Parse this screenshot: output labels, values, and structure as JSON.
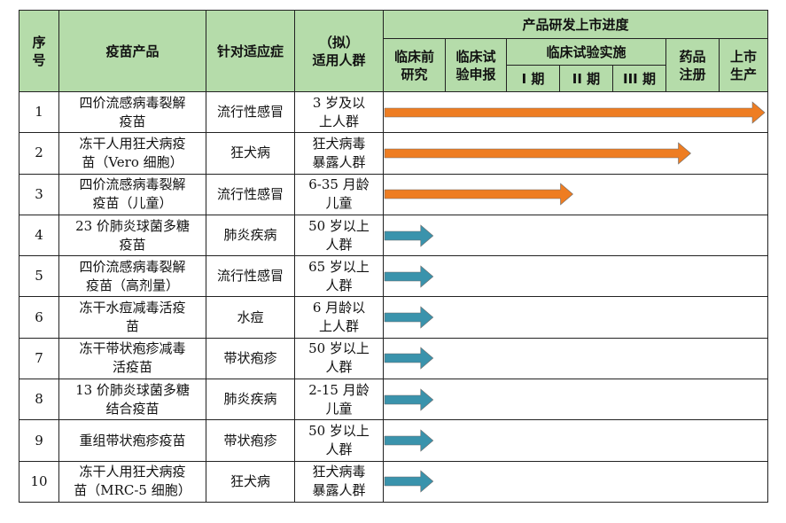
{
  "colors": {
    "header_bg": "#b5dcaa",
    "arrow_orange": "#ee7d22",
    "arrow_teal": "#3a93ac"
  },
  "headers": {
    "no": "序\n号",
    "product": "疫苗产品",
    "indication": "针对适应症",
    "population": "（拟）\n适用人群",
    "progress": "产品研发上市进度",
    "preclinical": "临床前\n研究",
    "ind": "临床试\n验申报",
    "trial": "临床试验实施",
    "phase1": "I 期",
    "phase2": "II 期",
    "phase3": "III 期",
    "nda": "药品\n注册",
    "launch": "上市\n生产"
  },
  "stage_count": 7,
  "rows": [
    {
      "no": "1",
      "product": "四价流感病毒裂解\n疫苗",
      "indication": "流行性感冒",
      "population": "3 岁及以\n上人群",
      "progress_stages": 7,
      "arrow_color": "orange"
    },
    {
      "no": "2",
      "product": "冻干人用狂犬病疫\n苗（Vero 细胞）",
      "indication": "狂犬病",
      "population": "狂犬病毒\n暴露人群",
      "progress_stages": 5.65,
      "arrow_color": "orange"
    },
    {
      "no": "3",
      "product": "四价流感病毒裂解\n疫苗（儿童）",
      "indication": "流行性感冒",
      "population": "6-35 月龄\n儿童",
      "progress_stages": 3.5,
      "arrow_color": "orange"
    },
    {
      "no": "4",
      "product": "23 价肺炎球菌多糖\n疫苗",
      "indication": "肺炎疾病",
      "population": "50 岁以上\n人群",
      "progress_stages": 0.95,
      "arrow_color": "teal"
    },
    {
      "no": "5",
      "product": "四价流感病毒裂解\n疫苗（高剂量）",
      "indication": "流行性感冒",
      "population": "65 岁以上\n人群",
      "progress_stages": 0.95,
      "arrow_color": "teal"
    },
    {
      "no": "6",
      "product": "冻干水痘减毒活疫\n苗",
      "indication": "水痘",
      "population": "6 月龄以\n上人群",
      "progress_stages": 0.95,
      "arrow_color": "teal"
    },
    {
      "no": "7",
      "product": "冻干带状疱疹减毒\n活疫苗",
      "indication": "带状疱疹",
      "population": "50 岁以上\n人群",
      "progress_stages": 0.95,
      "arrow_color": "teal"
    },
    {
      "no": "8",
      "product": "13 价肺炎球菌多糖\n结合疫苗",
      "indication": "肺炎疾病",
      "population": "2-15 月龄\n儿童",
      "progress_stages": 0.95,
      "arrow_color": "teal"
    },
    {
      "no": "9",
      "product": "重组带状疱疹疫苗",
      "indication": "带状疱疹",
      "population": "50 岁以上\n人群",
      "progress_stages": 0.95,
      "arrow_color": "teal"
    },
    {
      "no": "10",
      "product": "冻干人用狂犬病疫\n苗（MRC-5 细胞）",
      "indication": "狂犬病",
      "population": "狂犬病毒\n暴露人群",
      "progress_stages": 0.95,
      "arrow_color": "teal"
    }
  ]
}
